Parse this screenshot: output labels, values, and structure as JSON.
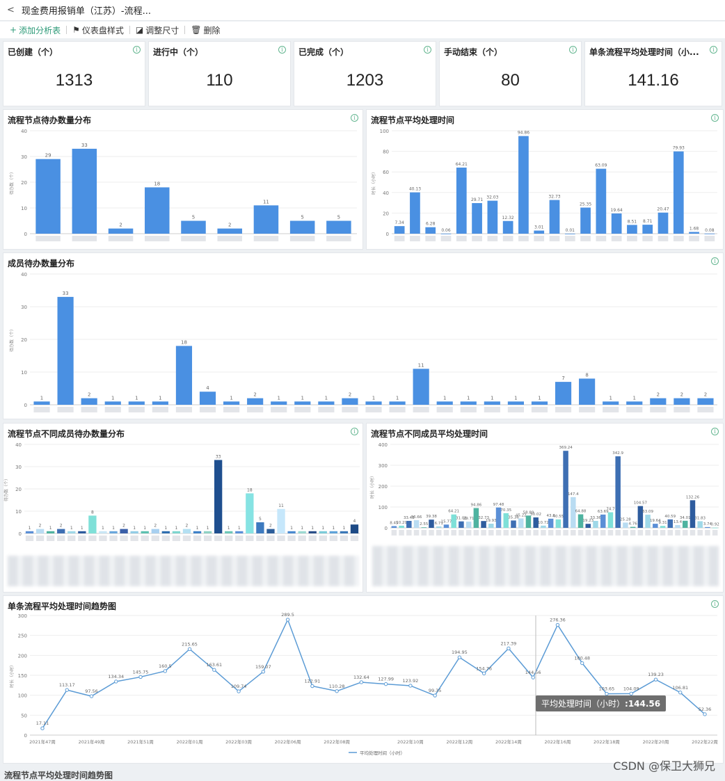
{
  "header": {
    "title": "现金费用报销单（江苏）-流程...",
    "back": "<"
  },
  "toolbar": {
    "add": "添加分析表",
    "style": "仪表盘样式",
    "resize": "调整尺寸",
    "delete": "删除"
  },
  "kpis": [
    {
      "label": "已创建（个）",
      "value": "1313"
    },
    {
      "label": "进行中（个）",
      "value": "110"
    },
    {
      "label": "已完成（个）",
      "value": "1203"
    },
    {
      "label": "手动结束（个）",
      "value": "80"
    },
    {
      "label": "单条流程平均处理时间（小...",
      "value": "141.16"
    }
  ],
  "info_glyph": "i",
  "watermark": "CSDN @保卫大狮兄",
  "tooltip": {
    "label": "平均处理时间（小时）",
    "value": ":144.56"
  },
  "bottom_title": "流程节点平均处理时间趋势图",
  "chart_data": [
    {
      "id": "node_todo",
      "type": "bar",
      "title": "流程节点待办数量分布",
      "ylabel": "待办数（个）",
      "ylim": [
        0,
        40
      ],
      "yticks": [
        0,
        10,
        20,
        30,
        40
      ],
      "values": [
        29,
        33,
        2,
        18,
        5,
        2,
        11,
        5,
        5
      ],
      "labels": [
        "29",
        "33",
        "2",
        "18",
        "5",
        "2",
        "11",
        "5",
        "5"
      ],
      "color": "#4a90e2"
    },
    {
      "id": "node_time",
      "type": "bar",
      "title": "流程节点平均处理时间",
      "ylabel": "时长（小时）",
      "ylim": [
        0,
        100
      ],
      "yticks": [
        0,
        20,
        40,
        60,
        80,
        100
      ],
      "values": [
        7.34,
        40.13,
        6.28,
        0.06,
        64.21,
        29.71,
        32.03,
        12.32,
        94.86,
        3.01,
        32.73,
        0.01,
        25.35,
        63.09,
        19.64,
        8.51,
        8.71,
        20.47,
        79.93,
        1.68,
        0.08
      ],
      "labels": [
        "7.34",
        "40.13",
        "6.28",
        "0.06",
        "64.21",
        "29.71",
        "32.03",
        "12.32",
        "94.86",
        "3.01",
        "32.73",
        "0.01",
        "25.35",
        "63.09",
        "19.64",
        "8.51",
        "8.71",
        "20.47",
        "79.93",
        "1.68",
        "0.08"
      ],
      "color": "#4a90e2"
    },
    {
      "id": "member_todo",
      "type": "bar",
      "title": "成员待办数量分布",
      "ylabel": "待办数（个）",
      "ylim": [
        0,
        40
      ],
      "yticks": [
        0,
        10,
        20,
        30,
        40
      ],
      "values": [
        1,
        33,
        2,
        1,
        1,
        1,
        18,
        4,
        1,
        2,
        1,
        1,
        1,
        2,
        1,
        1,
        11,
        1,
        1,
        1,
        1,
        1,
        7,
        8,
        1,
        1,
        2,
        2,
        2
      ],
      "labels": [
        "1",
        "33",
        "2",
        "1",
        "1",
        "1",
        "18",
        "4",
        "1",
        "2",
        "1",
        "1",
        "1",
        "2",
        "1",
        "1",
        "11",
        "1",
        "1",
        "1",
        "1",
        "1",
        "7",
        "8",
        "1",
        "1",
        "2",
        "2",
        "2"
      ],
      "color": "#4a90e2"
    },
    {
      "id": "node_member_todo",
      "type": "bar",
      "title": "流程节点不同成员待办数量分布",
      "ylabel": "待办数（个）",
      "ylim": [
        0,
        40
      ],
      "yticks": [
        0,
        10,
        20,
        30,
        40
      ],
      "values": [
        1,
        2,
        1,
        2,
        1,
        1,
        8,
        1,
        1,
        2,
        1,
        1,
        2,
        1,
        1,
        2,
        1,
        1,
        33,
        1,
        1,
        18,
        5,
        2,
        11,
        1,
        1,
        1,
        1,
        1,
        1,
        4
      ],
      "labels": [
        "1",
        "2",
        "1",
        "2",
        "1",
        "1",
        "8",
        "1",
        "1",
        "2",
        "1",
        "1",
        "2",
        "1",
        "1",
        "2",
        "1",
        "1",
        "33",
        "1",
        "1",
        "18",
        "5",
        "2",
        "11",
        "1",
        "1",
        "1",
        "1",
        "1",
        "1",
        "4"
      ],
      "colors": [
        "#5b8fd6",
        "#b9dcf2",
        "#4fb3a0",
        "#3e6fb3",
        "#9fd8e8",
        "#2e5c9e",
        "#7fe0d8",
        "#c9e6f5",
        "#6aa7dd",
        "#3a5fa8",
        "#93cde6",
        "#5cc1b0",
        "#a8d0f0",
        "#2f6fb0",
        "#7ed6cf",
        "#b4e0f2",
        "#3f82c8",
        "#8fd2c4",
        "#1f4f8f",
        "#6dc7b8",
        "#5a8fd8",
        "#86e3e3",
        "#3d7abf",
        "#2d5e9a",
        "#c6e7fb",
        "#4b8ad0",
        "#9bd9d2",
        "#2a4f8a",
        "#7ccbd9",
        "#5fa3d9",
        "#3a78b8",
        "#1d4a86"
      ]
    },
    {
      "id": "node_member_time",
      "type": "bar",
      "title": "流程节点不同成员平均处理时间",
      "ylabel": "时长（小时）",
      "ylim": [
        0,
        400
      ],
      "yticks": [
        0,
        100,
        200,
        300,
        400
      ],
      "values": [
        8.45,
        10.29,
        33.41,
        36.66,
        2.55,
        39.38,
        6.71,
        15.77,
        64.21,
        31.01,
        29.71,
        94.86,
        32.73,
        19.93,
        97.48,
        70.35,
        35.36,
        45.22,
        58.89,
        50.02,
        10.72,
        43.8,
        40.55,
        369.24,
        147.4,
        64.88,
        19.23,
        33.36,
        63.69,
        74.7,
        342.9,
        25.28,
        4.76,
        104.57,
        63.09,
        19.64,
        9.31,
        40.59,
        13.4,
        34.01,
        132.26,
        31.83,
        3.74,
        0.92
      ],
      "labels": [
        "8.45",
        "10.29",
        "33.41",
        "36.66",
        "2.55",
        "39.38",
        "6.71",
        "15.77",
        "64.21",
        "31.01",
        "29.71",
        "94.86",
        "32.73",
        "19.93",
        "97.48",
        "70.35",
        "35.36",
        "45.22",
        "58.89",
        "50.02",
        "10.72",
        "43.8",
        "40.55",
        "369.24",
        "147.4",
        "64.88",
        "19.23",
        "33.36",
        "63.69",
        "74.7",
        "342.9",
        "25.28",
        "4.76",
        "104.57",
        "63.09",
        "19.64",
        "9.31",
        "40.59",
        "13.4",
        "34.01",
        "132.26",
        "31.83",
        "3.74",
        "0.92"
      ],
      "colors": [
        "#5b8fd6",
        "#7fe0d8",
        "#3e6fb3",
        "#b9dcf2",
        "#4fb3a0",
        "#2e5c9e",
        "#9fd8e8"
      ]
    },
    {
      "id": "trend",
      "type": "line",
      "title": "单条流程平均处理时间趋势图",
      "ylabel": "时长（小时）",
      "legend": "平均处理时间（小时）",
      "ylim": [
        0,
        300
      ],
      "yticks": [
        0,
        50,
        100,
        150,
        200,
        250,
        300
      ],
      "xticklabels": [
        "2021年47周",
        "2021年49周",
        "2021年51周",
        "2022年01周",
        "2022年03周",
        "2022年06周",
        "2022年08周",
        "2022年10周",
        "2022年12周",
        "2022年14周",
        "2022年16周",
        "2022年18周",
        "2022年20周",
        "2022年22周"
      ],
      "values": [
        17.11,
        113.17,
        97.56,
        134.34,
        145.75,
        160.5,
        215.65,
        163.61,
        109.74,
        159.07,
        289.5,
        122.91,
        110.28,
        132.64,
        127.99,
        123.92,
        99.35,
        194.95,
        154.76,
        217.39,
        144.56,
        276.36,
        180.48,
        103.65,
        104.09,
        139.23,
        106.81,
        52.36
      ],
      "labels": [
        "17.11",
        "113.17",
        "97.56",
        "134.34",
        "145.75",
        "160.5",
        "215.65",
        "163.61",
        "109.74",
        "159.07",
        "289.5",
        "122.91",
        "110.28",
        "132.64",
        "127.99",
        "123.92",
        "99.35",
        "194.95",
        "154.76",
        "217.39",
        "144.56",
        "276.36",
        "180.48",
        "103.65",
        "104.09",
        "139.23",
        "106.81",
        "52.36"
      ],
      "color": "#5b9bd5"
    }
  ]
}
